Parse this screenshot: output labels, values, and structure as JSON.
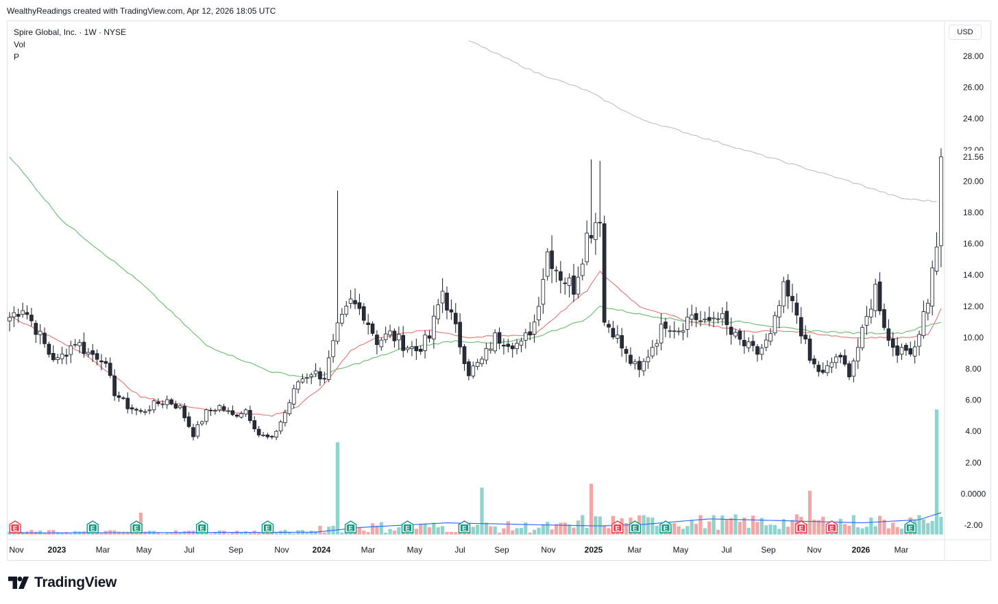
{
  "credit": "WealthyReadings created with TradingView.com, Apr 12, 2026 18:05 UTC",
  "legend": {
    "symbol_line": "Spire Global, Inc. · 1W · NYSE",
    "vol_label": "Vol",
    "p_label": "P"
  },
  "currency_button": "USD",
  "brand": {
    "name": "TradingView",
    "logo_icon": "tradingview-logo-icon"
  },
  "colors": {
    "up_candle_fill": "#ffffff",
    "down_candle_fill": "#2a2e39",
    "candle_outline": "#131722",
    "volume_up": "#8fd3cf",
    "volume_down": "#f2a6a6",
    "volume_ma": "#2962ff",
    "ma_red": "#e57373",
    "ma_green": "#66bb6a",
    "ma_gray": "#bdbdbd",
    "earnings_green": "#089981",
    "earnings_red": "#f23645"
  },
  "chart_data": {
    "type": "candlestick",
    "title": "Spire Global, Inc. · 1W · NYSE",
    "currency": "USD",
    "y_price_range": [
      2,
      30
    ],
    "y_ticks": [
      "28.00",
      "26.00",
      "24.00",
      "22.00",
      "20.00",
      "18.00",
      "16.00",
      "14.00",
      "12.00",
      "10.00",
      "8.00",
      "6.00",
      "4.00",
      "2.00",
      "0.0000",
      "-2.00"
    ],
    "last_price_label": "21.56",
    "last_price": 21.56,
    "x_ticks": [
      {
        "label": "Nov",
        "major": false
      },
      {
        "label": "2023",
        "major": true
      },
      {
        "label": "Mar",
        "major": false
      },
      {
        "label": "May",
        "major": false
      },
      {
        "label": "Jul",
        "major": false
      },
      {
        "label": "Sep",
        "major": false
      },
      {
        "label": "Nov",
        "major": false
      },
      {
        "label": "2024",
        "major": true
      },
      {
        "label": "Mar",
        "major": false
      },
      {
        "label": "May",
        "major": false
      },
      {
        "label": "Jul",
        "major": false
      },
      {
        "label": "Sep",
        "major": false
      },
      {
        "label": "Nov",
        "major": false
      },
      {
        "label": "2025",
        "major": true
      },
      {
        "label": "Mar",
        "major": false
      },
      {
        "label": "May",
        "major": false
      },
      {
        "label": "Jul",
        "major": false
      },
      {
        "label": "Sep",
        "major": false
      },
      {
        "label": "Nov",
        "major": false
      },
      {
        "label": "2026",
        "major": true
      },
      {
        "label": "Mar",
        "major": false
      }
    ],
    "price_anchors": [
      [
        0,
        11.3
      ],
      [
        3,
        12.0
      ],
      [
        6,
        10.6
      ],
      [
        9,
        9.0
      ],
      [
        11,
        8.5
      ],
      [
        15,
        9.8
      ],
      [
        18,
        9.0
      ],
      [
        21,
        8.8
      ],
      [
        24,
        6.5
      ],
      [
        27,
        5.6
      ],
      [
        30,
        5.2
      ],
      [
        33,
        5.7
      ],
      [
        36,
        6.0
      ],
      [
        39,
        5.5
      ],
      [
        42,
        3.8
      ],
      [
        45,
        5.2
      ],
      [
        48,
        5.6
      ],
      [
        51,
        5.0
      ],
      [
        54,
        5.4
      ],
      [
        57,
        3.8
      ],
      [
        60,
        3.5
      ],
      [
        63,
        5.2
      ],
      [
        66,
        7.2
      ],
      [
        69,
        7.8
      ],
      [
        72,
        7.5
      ],
      [
        75,
        10.5
      ],
      [
        78,
        12.2
      ],
      [
        81,
        11.6
      ],
      [
        84,
        9.8
      ],
      [
        87,
        10.2
      ],
      [
        90,
        9.6
      ],
      [
        93,
        9.2
      ],
      [
        96,
        10.0
      ],
      [
        99,
        13.0
      ],
      [
        102,
        10.5
      ],
      [
        105,
        7.8
      ],
      [
        108,
        8.5
      ],
      [
        111,
        10.0
      ],
      [
        114,
        9.8
      ],
      [
        117,
        9.5
      ],
      [
        120,
        11.0
      ],
      [
        123,
        15.5
      ],
      [
        126,
        14.0
      ],
      [
        129,
        13.2
      ],
      [
        132,
        16.5
      ],
      [
        135,
        18.0
      ],
      [
        136,
        11.0
      ],
      [
        138,
        10.5
      ],
      [
        141,
        8.8
      ],
      [
        144,
        7.8
      ],
      [
        147,
        9.5
      ],
      [
        150,
        11.0
      ],
      [
        153,
        10.6
      ],
      [
        156,
        11.5
      ],
      [
        159,
        10.8
      ],
      [
        162,
        11.6
      ],
      [
        165,
        10.2
      ],
      [
        168,
        9.5
      ],
      [
        171,
        9.0
      ],
      [
        174,
        10.0
      ],
      [
        177,
        13.0
      ],
      [
        180,
        11.5
      ],
      [
        183,
        8.5
      ],
      [
        186,
        7.6
      ],
      [
        189,
        8.8
      ],
      [
        192,
        7.8
      ],
      [
        195,
        10.2
      ],
      [
        198,
        13.2
      ],
      [
        201,
        9.8
      ],
      [
        204,
        9.0
      ],
      [
        207,
        9.5
      ],
      [
        210,
        12.5
      ],
      [
        212,
        15.8
      ],
      [
        213,
        21.56
      ]
    ],
    "highlighted_wicks": [
      [
        75,
        19.4
      ],
      [
        133,
        21.4
      ],
      [
        135,
        21.3
      ]
    ],
    "ma_red_anchors": [
      [
        0,
        11.4
      ],
      [
        18,
        8.8
      ],
      [
        30,
        6.2
      ],
      [
        45,
        5.4
      ],
      [
        60,
        5.0
      ],
      [
        66,
        5.6
      ],
      [
        72,
        7.0
      ],
      [
        78,
        9.2
      ],
      [
        84,
        10.0
      ],
      [
        96,
        10.5
      ],
      [
        105,
        10.0
      ],
      [
        120,
        10.2
      ],
      [
        132,
        13.0
      ],
      [
        135,
        14.2
      ],
      [
        144,
        12.0
      ],
      [
        156,
        11.0
      ],
      [
        168,
        10.4
      ],
      [
        180,
        10.4
      ],
      [
        192,
        10.0
      ],
      [
        204,
        10.0
      ],
      [
        210,
        10.2
      ],
      [
        213,
        11.8
      ]
    ],
    "ma_green_anchors": [
      [
        0,
        21.6
      ],
      [
        12,
        17.5
      ],
      [
        30,
        13.5
      ],
      [
        45,
        9.5
      ],
      [
        60,
        7.8
      ],
      [
        69,
        7.4
      ],
      [
        78,
        8.2
      ],
      [
        90,
        9.3
      ],
      [
        102,
        9.8
      ],
      [
        111,
        9.6
      ],
      [
        120,
        10.0
      ],
      [
        132,
        11.2
      ],
      [
        135,
        12.0
      ],
      [
        144,
        11.5
      ],
      [
        156,
        11.0
      ],
      [
        168,
        11.0
      ],
      [
        180,
        10.5
      ],
      [
        192,
        10.3
      ],
      [
        204,
        10.3
      ],
      [
        213,
        11.0
      ]
    ],
    "ma_gray_anchors": [
      [
        105,
        29.0
      ],
      [
        120,
        27.0
      ],
      [
        132,
        25.8
      ],
      [
        144,
        24.0
      ],
      [
        156,
        23.0
      ],
      [
        168,
        22.0
      ],
      [
        180,
        21.0
      ],
      [
        192,
        20.0
      ],
      [
        204,
        18.9
      ],
      [
        212,
        18.7
      ]
    ],
    "volume_spikes": [
      [
        75,
        3.3
      ],
      [
        108,
        0.4
      ],
      [
        133,
        0.65
      ],
      [
        212,
        5.4
      ],
      [
        183,
        0.2
      ],
      [
        30,
        -1.2
      ]
    ],
    "earnings": [
      {
        "week": 0,
        "type": "red",
        "label": "E"
      },
      {
        "week": 19,
        "type": "green",
        "label": "E"
      },
      {
        "week": 29,
        "type": "green",
        "label": "E"
      },
      {
        "week": 44,
        "type": "green",
        "label": "E"
      },
      {
        "week": 59,
        "type": "green",
        "label": "E"
      },
      {
        "week": 78,
        "type": "green",
        "label": "E"
      },
      {
        "week": 91,
        "type": "green",
        "label": "E"
      },
      {
        "week": 104,
        "type": "green",
        "label": "E"
      },
      {
        "week": 139,
        "type": "red",
        "label": "E"
      },
      {
        "week": 143,
        "type": "green",
        "label": "E"
      },
      {
        "week": 150,
        "type": "green",
        "label": "E"
      },
      {
        "week": 181,
        "type": "red",
        "label": "E"
      },
      {
        "week": 188,
        "type": "red",
        "label": "E"
      },
      {
        "week": 206,
        "type": "green",
        "label": "E"
      }
    ]
  }
}
